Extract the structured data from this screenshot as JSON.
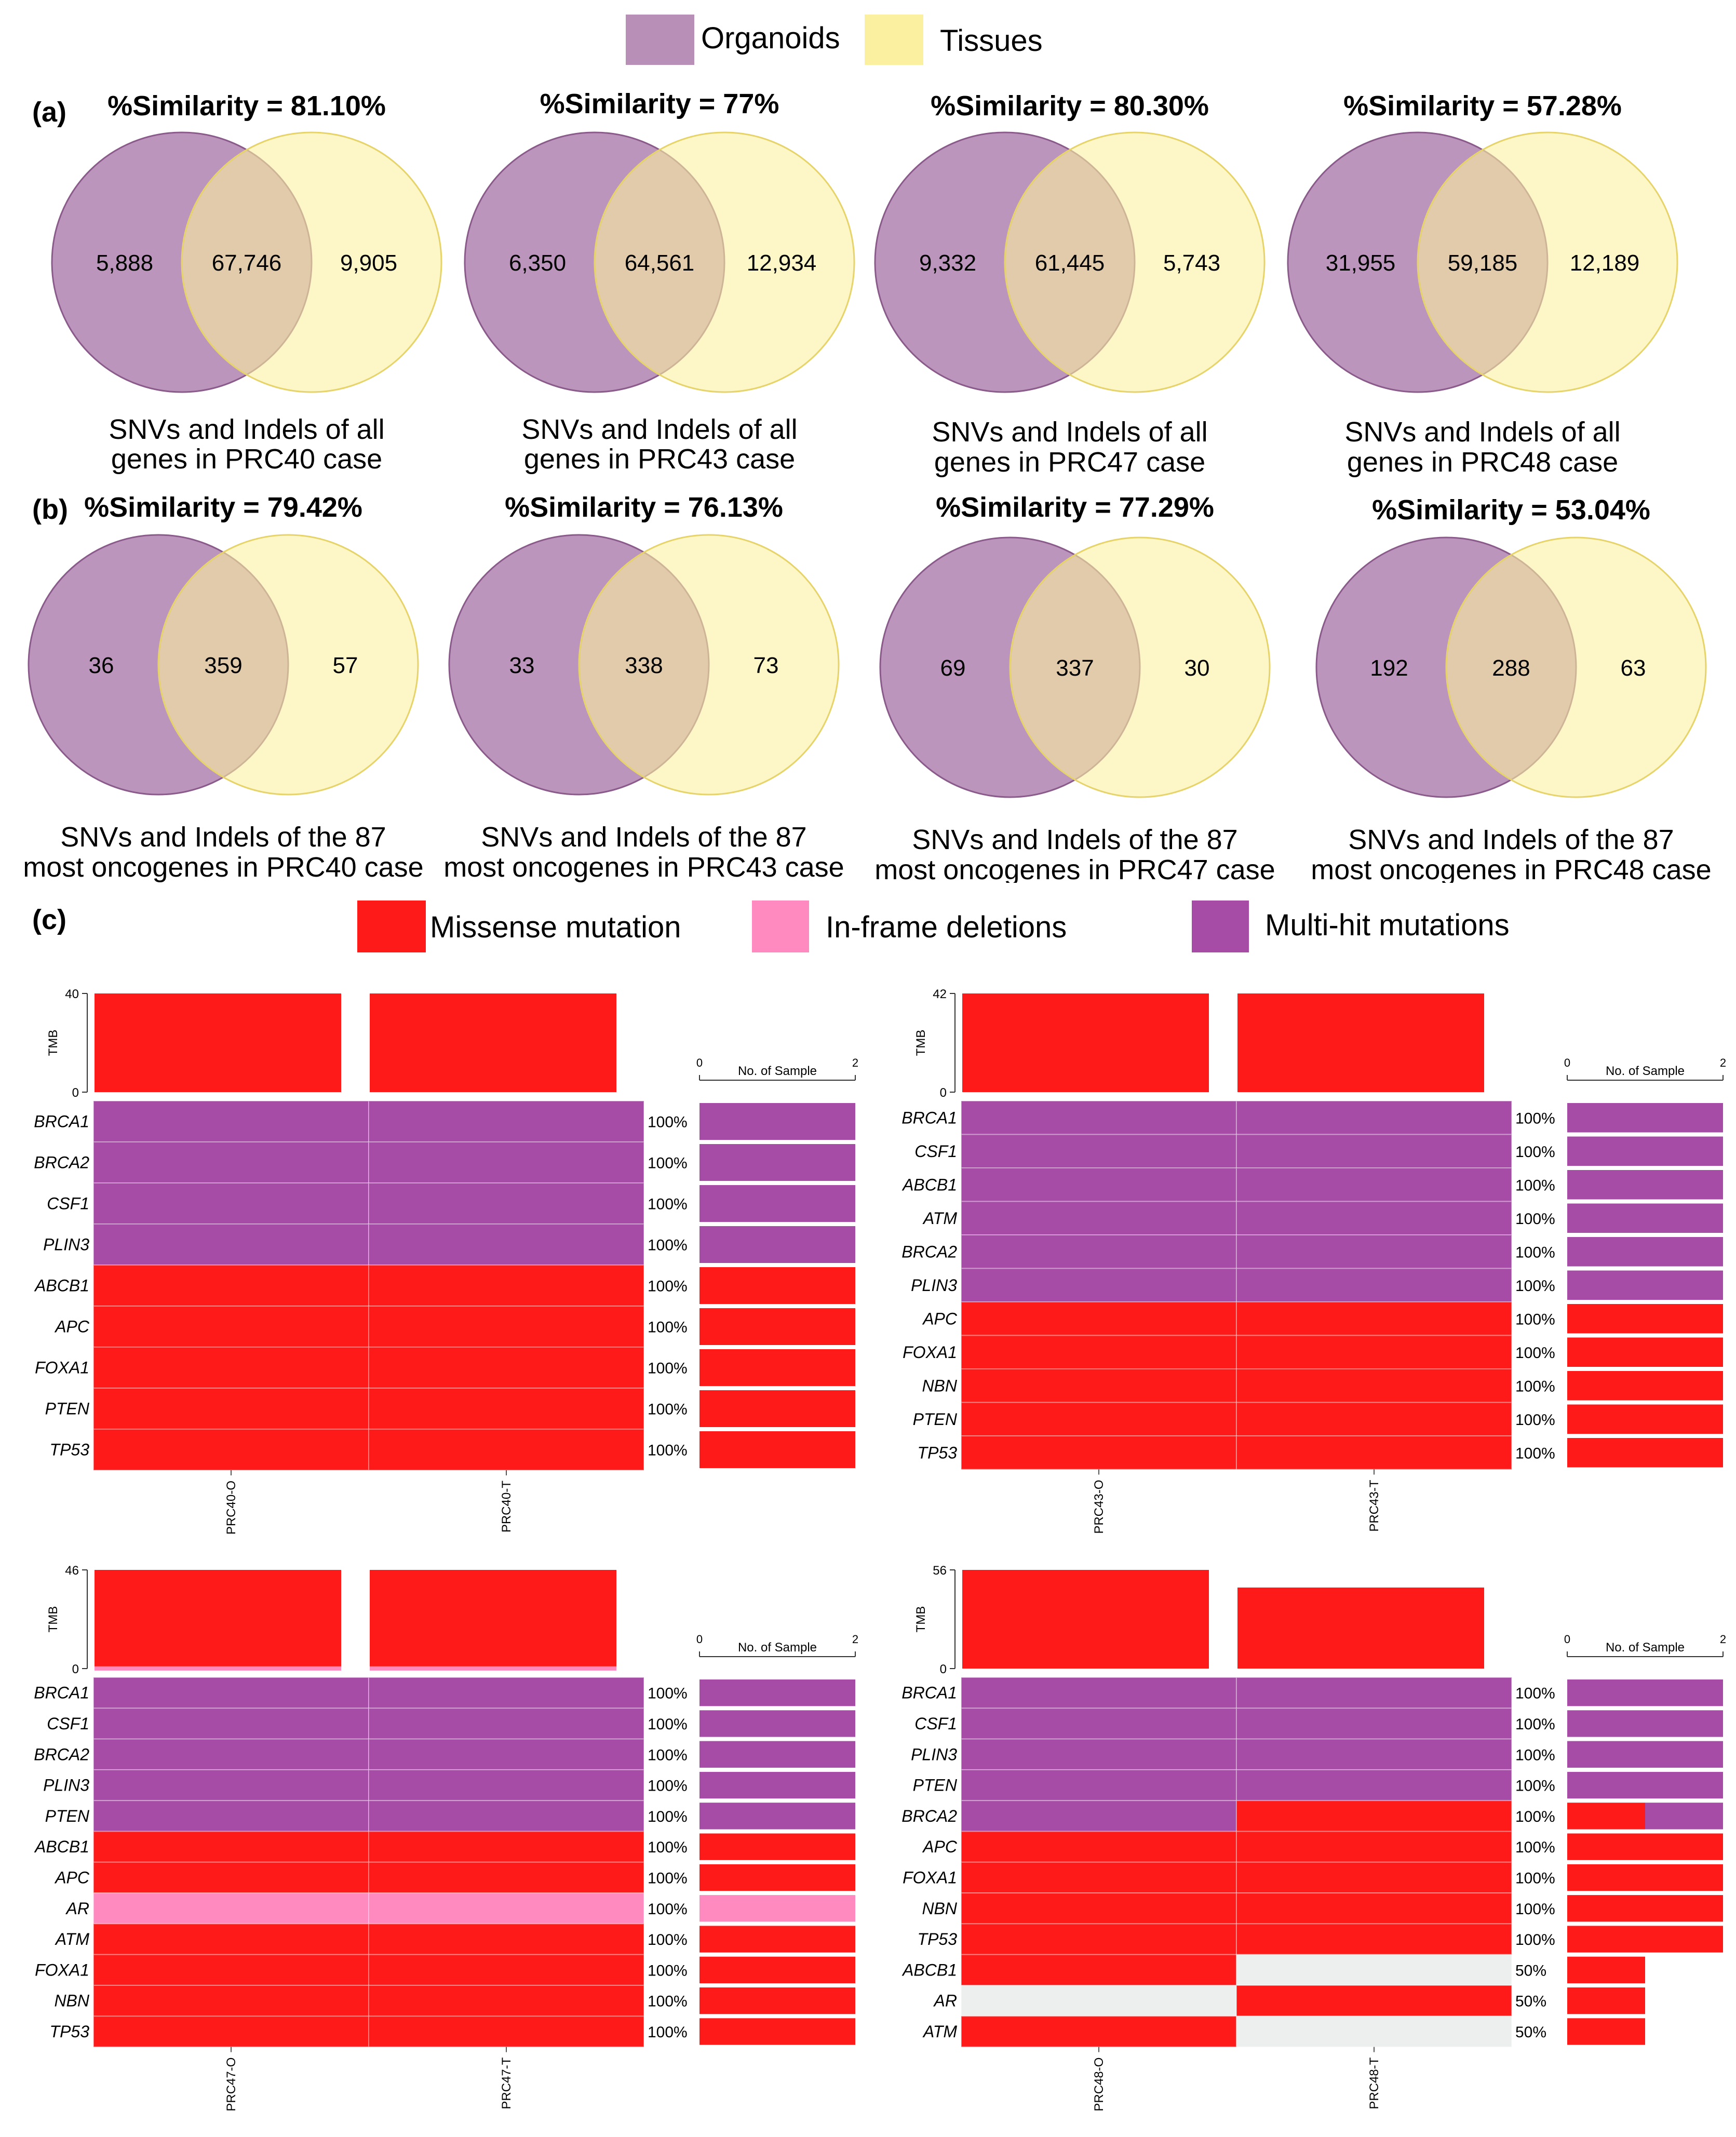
{
  "legend_top": {
    "organoids_label": "Organoids",
    "tissues_label": "Tissues",
    "organoids_color": "#B78FB7",
    "tissues_color": "#FBF0A0"
  },
  "panel_labels": {
    "a": "(a)",
    "b": "(b)",
    "c": "(c)"
  },
  "legend_c": {
    "missense_label": "Missense mutation",
    "inframe_label": "In-frame deletions",
    "multihit_label": "Multi-hit mutations",
    "missense_color": "#FF1A1A",
    "inframe_color": "#FF8AC0",
    "multihit_color": "#A64CA6"
  },
  "chart_data": [
    {
      "type": "venn",
      "panel": "a",
      "title": "%Similarity = 81.10%",
      "caption": [
        "SNVs and Indels of all",
        "genes in PRC40 case"
      ],
      "organoid_only": "5,888",
      "shared": "67,746",
      "tissue_only": "9,905"
    },
    {
      "type": "venn",
      "panel": "a",
      "title": "%Similarity = 77%",
      "caption": [
        "SNVs and Indels of all",
        "genes in PRC43 case"
      ],
      "organoid_only": "6,350",
      "shared": "64,561",
      "tissue_only": "12,934"
    },
    {
      "type": "venn",
      "panel": "a",
      "title": "%Similarity = 80.30%",
      "caption": [
        "SNVs and Indels of all",
        "genes in PRC47 case"
      ],
      "organoid_only": "9,332",
      "shared": "61,445",
      "tissue_only": "5,743"
    },
    {
      "type": "venn",
      "panel": "a",
      "title": "%Similarity = 57.28%",
      "caption": [
        "SNVs and Indels of all",
        "genes in PRC48 case"
      ],
      "organoid_only": "31,955",
      "shared": "59,185",
      "tissue_only": "12,189"
    },
    {
      "type": "venn",
      "panel": "b",
      "title": "%Similarity = 79.42%",
      "caption": [
        "SNVs and Indels of the 87",
        "most oncogenes in PRC40 case"
      ],
      "organoid_only": "36",
      "shared": "359",
      "tissue_only": "57"
    },
    {
      "type": "venn",
      "panel": "b",
      "title": "%Similarity = 76.13%",
      "caption": [
        "SNVs and Indels of the 87",
        "most oncogenes in PRC43 case"
      ],
      "organoid_only": "33",
      "shared": "338",
      "tissue_only": "73"
    },
    {
      "type": "venn",
      "panel": "b",
      "title": "%Similarity = 77.29%",
      "caption": [
        "SNVs and Indels of the 87",
        "most oncogenes in PRC47 case"
      ],
      "organoid_only": "69",
      "shared": "337",
      "tissue_only": "30"
    },
    {
      "type": "venn",
      "panel": "b",
      "title": "%Similarity = 53.04%",
      "caption": [
        "SNVs and Indels of the 87",
        "most oncogenes in PRC48 case"
      ],
      "organoid_only": "192",
      "shared": "288",
      "tissue_only": "63"
    },
    {
      "type": "heatmap",
      "panel": "c",
      "case": "PRC40",
      "tmb_label": "TMB",
      "tmb_ticks": [
        "40",
        "0"
      ],
      "tmb_max": 40,
      "samples": [
        "PRC40-O",
        "PRC40-T"
      ],
      "tmb": [
        {
          "missense": 40,
          "inframe": 0
        },
        {
          "missense": 40,
          "inframe": 0
        }
      ],
      "nsample_label": "No. of Sample",
      "nsample_ticks": [
        "0",
        "2"
      ],
      "rows": [
        {
          "gene": "BRCA1",
          "cells": [
            "multihit",
            "multihit"
          ],
          "pct": "100%",
          "bar": [
            {
              "type": "multihit",
              "count": 2
            }
          ]
        },
        {
          "gene": "BRCA2",
          "cells": [
            "multihit",
            "multihit"
          ],
          "pct": "100%",
          "bar": [
            {
              "type": "multihit",
              "count": 2
            }
          ]
        },
        {
          "gene": "CSF1",
          "cells": [
            "multihit",
            "multihit"
          ],
          "pct": "100%",
          "bar": [
            {
              "type": "multihit",
              "count": 2
            }
          ]
        },
        {
          "gene": "PLIN3",
          "cells": [
            "multihit",
            "multihit"
          ],
          "pct": "100%",
          "bar": [
            {
              "type": "multihit",
              "count": 2
            }
          ]
        },
        {
          "gene": "ABCB1",
          "cells": [
            "missense",
            "missense"
          ],
          "pct": "100%",
          "bar": [
            {
              "type": "missense",
              "count": 2
            }
          ]
        },
        {
          "gene": "APC",
          "cells": [
            "missense",
            "missense"
          ],
          "pct": "100%",
          "bar": [
            {
              "type": "missense",
              "count": 2
            }
          ]
        },
        {
          "gene": "FOXA1",
          "cells": [
            "missense",
            "missense"
          ],
          "pct": "100%",
          "bar": [
            {
              "type": "missense",
              "count": 2
            }
          ]
        },
        {
          "gene": "PTEN",
          "cells": [
            "missense",
            "missense"
          ],
          "pct": "100%",
          "bar": [
            {
              "type": "missense",
              "count": 2
            }
          ]
        },
        {
          "gene": "TP53",
          "cells": [
            "missense",
            "missense"
          ],
          "pct": "100%",
          "bar": [
            {
              "type": "missense",
              "count": 2
            }
          ]
        }
      ]
    },
    {
      "type": "heatmap",
      "panel": "c",
      "case": "PRC43",
      "tmb_label": "TMB",
      "tmb_ticks": [
        "42",
        "0"
      ],
      "tmb_max": 42,
      "samples": [
        "PRC43-O",
        "PRC43-T"
      ],
      "tmb": [
        {
          "missense": 42,
          "inframe": 0
        },
        {
          "missense": 42,
          "inframe": 0
        }
      ],
      "nsample_label": "No. of Sample",
      "nsample_ticks": [
        "0",
        "2"
      ],
      "rows": [
        {
          "gene": "BRCA1",
          "cells": [
            "multihit",
            "multihit"
          ],
          "pct": "100%",
          "bar": [
            {
              "type": "multihit",
              "count": 2
            }
          ]
        },
        {
          "gene": "CSF1",
          "cells": [
            "multihit",
            "multihit"
          ],
          "pct": "100%",
          "bar": [
            {
              "type": "multihit",
              "count": 2
            }
          ]
        },
        {
          "gene": "ABCB1",
          "cells": [
            "multihit",
            "multihit"
          ],
          "pct": "100%",
          "bar": [
            {
              "type": "multihit",
              "count": 2
            }
          ]
        },
        {
          "gene": "ATM",
          "cells": [
            "multihit",
            "multihit"
          ],
          "pct": "100%",
          "bar": [
            {
              "type": "multihit",
              "count": 2
            }
          ]
        },
        {
          "gene": "BRCA2",
          "cells": [
            "multihit",
            "multihit"
          ],
          "pct": "100%",
          "bar": [
            {
              "type": "multihit",
              "count": 2
            }
          ]
        },
        {
          "gene": "PLIN3",
          "cells": [
            "multihit",
            "multihit"
          ],
          "pct": "100%",
          "bar": [
            {
              "type": "multihit",
              "count": 2
            }
          ]
        },
        {
          "gene": "APC",
          "cells": [
            "missense",
            "missense"
          ],
          "pct": "100%",
          "bar": [
            {
              "type": "missense",
              "count": 2
            }
          ]
        },
        {
          "gene": "FOXA1",
          "cells": [
            "missense",
            "missense"
          ],
          "pct": "100%",
          "bar": [
            {
              "type": "missense",
              "count": 2
            }
          ]
        },
        {
          "gene": "NBN",
          "cells": [
            "missense",
            "missense"
          ],
          "pct": "100%",
          "bar": [
            {
              "type": "missense",
              "count": 2
            }
          ]
        },
        {
          "gene": "PTEN",
          "cells": [
            "missense",
            "missense"
          ],
          "pct": "100%",
          "bar": [
            {
              "type": "missense",
              "count": 2
            }
          ]
        },
        {
          "gene": "TP53",
          "cells": [
            "missense",
            "missense"
          ],
          "pct": "100%",
          "bar": [
            {
              "type": "missense",
              "count": 2
            }
          ]
        }
      ]
    },
    {
      "type": "heatmap",
      "panel": "c",
      "case": "PRC47",
      "tmb_label": "TMB",
      "tmb_ticks": [
        "46",
        "0"
      ],
      "tmb_max": 46,
      "samples": [
        "PRC47-O",
        "PRC47-T"
      ],
      "tmb": [
        {
          "missense": 45,
          "inframe": 1
        },
        {
          "missense": 45,
          "inframe": 1
        }
      ],
      "nsample_label": "No. of Sample",
      "nsample_ticks": [
        "0",
        "2"
      ],
      "rows": [
        {
          "gene": "BRCA1",
          "cells": [
            "multihit",
            "multihit"
          ],
          "pct": "100%",
          "bar": [
            {
              "type": "multihit",
              "count": 2
            }
          ]
        },
        {
          "gene": "CSF1",
          "cells": [
            "multihit",
            "multihit"
          ],
          "pct": "100%",
          "bar": [
            {
              "type": "multihit",
              "count": 2
            }
          ]
        },
        {
          "gene": "BRCA2",
          "cells": [
            "multihit",
            "multihit"
          ],
          "pct": "100%",
          "bar": [
            {
              "type": "multihit",
              "count": 2
            }
          ]
        },
        {
          "gene": "PLIN3",
          "cells": [
            "multihit",
            "multihit"
          ],
          "pct": "100%",
          "bar": [
            {
              "type": "multihit",
              "count": 2
            }
          ]
        },
        {
          "gene": "PTEN",
          "cells": [
            "multihit",
            "multihit"
          ],
          "pct": "100%",
          "bar": [
            {
              "type": "multihit",
              "count": 2
            }
          ]
        },
        {
          "gene": "ABCB1",
          "cells": [
            "missense",
            "missense"
          ],
          "pct": "100%",
          "bar": [
            {
              "type": "missense",
              "count": 2
            }
          ]
        },
        {
          "gene": "APC",
          "cells": [
            "missense",
            "missense"
          ],
          "pct": "100%",
          "bar": [
            {
              "type": "missense",
              "count": 2
            }
          ]
        },
        {
          "gene": "AR",
          "cells": [
            "inframe",
            "inframe"
          ],
          "pct": "100%",
          "bar": [
            {
              "type": "inframe",
              "count": 2
            }
          ]
        },
        {
          "gene": "ATM",
          "cells": [
            "missense",
            "missense"
          ],
          "pct": "100%",
          "bar": [
            {
              "type": "missense",
              "count": 2
            }
          ]
        },
        {
          "gene": "FOXA1",
          "cells": [
            "missense",
            "missense"
          ],
          "pct": "100%",
          "bar": [
            {
              "type": "missense",
              "count": 2
            }
          ]
        },
        {
          "gene": "NBN",
          "cells": [
            "missense",
            "missense"
          ],
          "pct": "100%",
          "bar": [
            {
              "type": "missense",
              "count": 2
            }
          ]
        },
        {
          "gene": "TP53",
          "cells": [
            "missense",
            "missense"
          ],
          "pct": "100%",
          "bar": [
            {
              "type": "missense",
              "count": 2
            }
          ]
        }
      ]
    },
    {
      "type": "heatmap",
      "panel": "c",
      "case": "PRC48",
      "tmb_label": "TMB",
      "tmb_ticks": [
        "56",
        "0"
      ],
      "tmb_max": 56,
      "samples": [
        "PRC48-O",
        "PRC48-T"
      ],
      "tmb": [
        {
          "missense": 56,
          "inframe": 0
        },
        {
          "missense": 46,
          "inframe": 0
        }
      ],
      "nsample_label": "No. of Sample",
      "nsample_ticks": [
        "0",
        "2"
      ],
      "rows": [
        {
          "gene": "BRCA1",
          "cells": [
            "multihit",
            "multihit"
          ],
          "pct": "100%",
          "bar": [
            {
              "type": "multihit",
              "count": 2
            }
          ]
        },
        {
          "gene": "CSF1",
          "cells": [
            "multihit",
            "multihit"
          ],
          "pct": "100%",
          "bar": [
            {
              "type": "multihit",
              "count": 2
            }
          ]
        },
        {
          "gene": "PLIN3",
          "cells": [
            "multihit",
            "multihit"
          ],
          "pct": "100%",
          "bar": [
            {
              "type": "multihit",
              "count": 2
            }
          ]
        },
        {
          "gene": "PTEN",
          "cells": [
            "multihit",
            "multihit"
          ],
          "pct": "100%",
          "bar": [
            {
              "type": "multihit",
              "count": 2
            }
          ]
        },
        {
          "gene": "BRCA2",
          "cells": [
            "multihit",
            "missense"
          ],
          "pct": "100%",
          "bar": [
            {
              "type": "missense",
              "count": 1
            },
            {
              "type": "multihit",
              "count": 1
            }
          ]
        },
        {
          "gene": "APC",
          "cells": [
            "missense",
            "missense"
          ],
          "pct": "100%",
          "bar": [
            {
              "type": "missense",
              "count": 2
            }
          ]
        },
        {
          "gene": "FOXA1",
          "cells": [
            "missense",
            "missense"
          ],
          "pct": "100%",
          "bar": [
            {
              "type": "missense",
              "count": 2
            }
          ]
        },
        {
          "gene": "NBN",
          "cells": [
            "missense",
            "missense"
          ],
          "pct": "100%",
          "bar": [
            {
              "type": "missense",
              "count": 2
            }
          ]
        },
        {
          "gene": "TP53",
          "cells": [
            "missense",
            "missense"
          ],
          "pct": "100%",
          "bar": [
            {
              "type": "missense",
              "count": 2
            }
          ]
        },
        {
          "gene": "ABCB1",
          "cells": [
            "missense",
            "none"
          ],
          "pct": "50%",
          "bar": [
            {
              "type": "missense",
              "count": 1
            }
          ]
        },
        {
          "gene": "AR",
          "cells": [
            "none",
            "missense"
          ],
          "pct": "50%",
          "bar": [
            {
              "type": "missense",
              "count": 1
            }
          ]
        },
        {
          "gene": "ATM",
          "cells": [
            "missense",
            "none"
          ],
          "pct": "50%",
          "bar": [
            {
              "type": "missense",
              "count": 1
            }
          ]
        }
      ]
    }
  ]
}
